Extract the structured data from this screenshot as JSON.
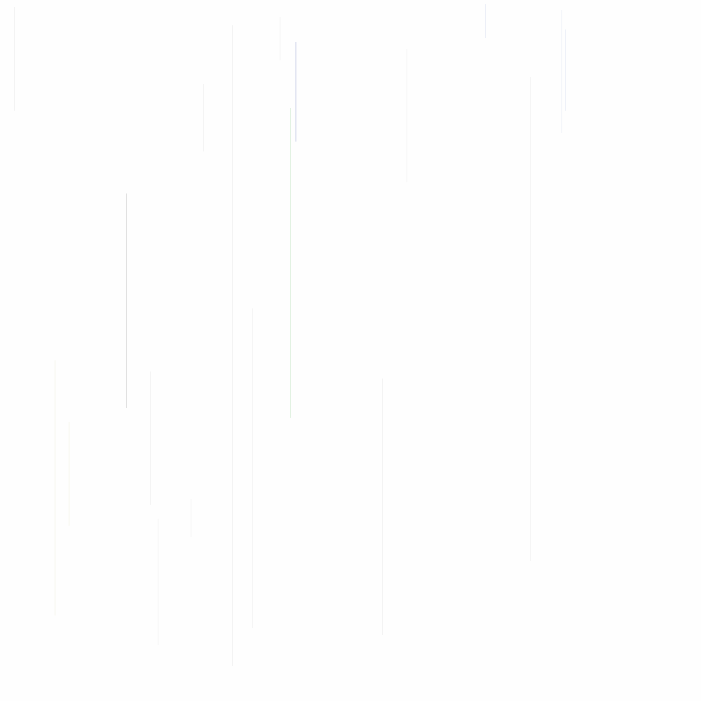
{
  "page": {
    "background": "#fefefe"
  },
  "palette": {
    "faint_gray": "#f1f1f1",
    "light_gray": "#e8e8e8",
    "mid_gray": "#e0e0e0",
    "faint_blue": "#e3e6f2",
    "pale_blue": "#eaeef6",
    "pale_green": "#dff1df",
    "pale_cream": "#f3f3e6"
  }
}
